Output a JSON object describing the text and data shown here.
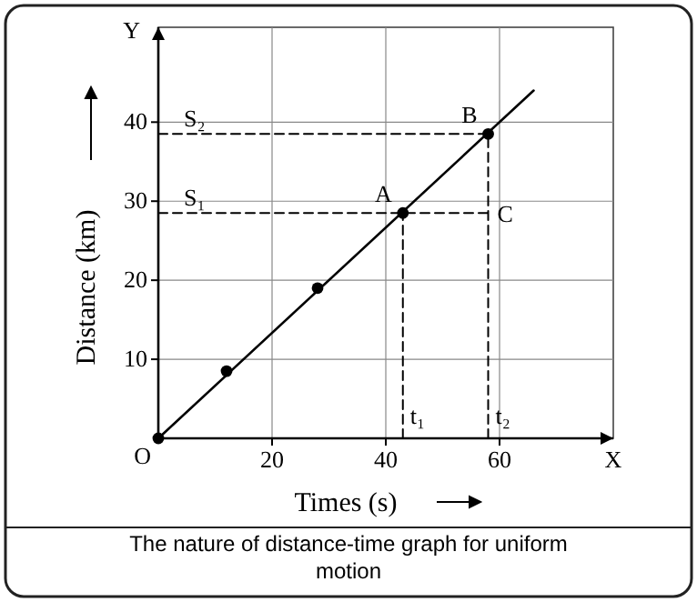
{
  "chart_data": {
    "type": "line",
    "xlabel": "Times (s)",
    "ylabel": "Distance (km)",
    "xlim": [
      0,
      80
    ],
    "ylim": [
      0,
      52
    ],
    "xticks": [
      20,
      40,
      60
    ],
    "yticks": [
      10,
      20,
      30,
      40
    ],
    "grid": true,
    "series": [
      {
        "x": [
          0,
          66
        ],
        "values": [
          0,
          44
        ],
        "color": "#000000",
        "line_style": "solid",
        "marker": "none"
      },
      {
        "type": "scatter",
        "x": [
          0,
          12,
          28,
          43,
          58
        ],
        "values": [
          0,
          8.5,
          19,
          28.5,
          38.5
        ],
        "color": "#000000",
        "marker": "circle"
      },
      {
        "x": [
          0,
          58
        ],
        "values": [
          38.5,
          38.5
        ],
        "color": "#000000",
        "line_style": "dashed",
        "marker": "none"
      },
      {
        "x": [
          0,
          58
        ],
        "values": [
          28.5,
          28.5
        ],
        "color": "#000000",
        "line_style": "dashed",
        "marker": "none"
      },
      {
        "x": [
          43,
          43
        ],
        "values": [
          0,
          28.5
        ],
        "color": "#000000",
        "line_style": "dashed",
        "marker": "none"
      },
      {
        "x": [
          58,
          58
        ],
        "values": [
          0,
          38.5
        ],
        "color": "#000000",
        "line_style": "dashed",
        "marker": "none"
      }
    ],
    "annotations": [
      {
        "text": "O",
        "x": 0,
        "y": 0
      },
      "X",
      "Y",
      {
        "text": "A",
        "x": 43,
        "y": 28.5
      },
      {
        "text": "B",
        "x": 58,
        "y": 38.5
      },
      {
        "text": "C",
        "x": 58,
        "y": 28.5
      },
      {
        "text": "S₁",
        "x": 0,
        "y": 28.5
      },
      {
        "text": "S₂",
        "x": 0,
        "y": 38.5
      },
      {
        "text": "t₁",
        "x": 43,
        "y": 0
      },
      {
        "text": "t₂",
        "x": 58,
        "y": 0
      },
      "The nature of distance-time graph for uniform motion"
    ]
  }
}
